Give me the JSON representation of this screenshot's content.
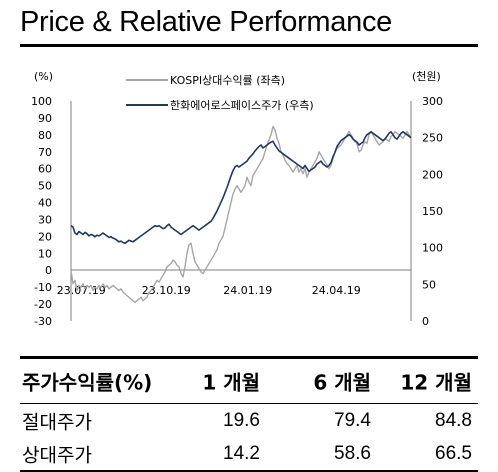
{
  "title": "Price & Relative Performance",
  "chart_data": {
    "type": "line",
    "left_unit": "(%)",
    "right_unit": "(천원)",
    "left_ticks": [
      100,
      90,
      80,
      70,
      60,
      50,
      40,
      30,
      20,
      10,
      0,
      -10,
      -20,
      -30
    ],
    "right_ticks": [
      300,
      250,
      200,
      150,
      100,
      50,
      0
    ],
    "x_ticks": [
      "23.07.19",
      "23.10.19",
      "24.01.19",
      "24.04.19"
    ],
    "ylim_left": [
      -30,
      100
    ],
    "ylim_right": [
      0,
      300
    ],
    "series": [
      {
        "name": "KOSPI상대수익률 (좌측)",
        "axis": "left",
        "color": "#a6a6a6",
        "x": [
          0,
          2,
          4,
          6,
          8,
          10,
          12,
          14,
          16,
          18,
          20,
          22,
          24,
          26,
          28,
          30,
          32,
          34,
          36,
          38,
          40,
          42,
          44,
          46,
          48,
          50,
          52,
          54,
          56,
          58,
          60,
          62,
          64,
          66,
          68,
          70,
          72,
          74,
          76,
          78,
          80,
          82,
          84,
          86,
          88,
          90,
          92,
          94,
          96,
          98,
          100,
          102,
          104,
          106,
          108,
          110,
          112,
          114,
          116,
          118,
          120,
          122,
          124,
          126,
          128,
          130,
          132,
          134,
          136,
          138,
          140,
          142,
          144,
          146,
          148,
          150,
          152,
          154,
          156,
          158,
          160,
          162,
          164,
          166,
          168,
          170,
          172,
          174,
          176,
          178,
          180,
          182,
          184,
          186,
          188,
          190,
          192,
          194,
          196,
          198,
          200,
          202,
          204,
          206,
          208,
          210,
          212,
          214,
          216,
          218,
          220,
          222,
          224,
          226,
          228,
          230,
          232,
          234,
          236,
          238,
          240,
          242,
          244,
          246,
          248,
          250,
          252,
          254,
          256,
          258,
          260,
          262,
          264,
          266,
          268,
          270,
          272,
          274,
          276,
          278,
          280,
          282,
          284,
          286,
          288,
          290,
          292,
          294,
          296,
          298,
          300,
          302,
          304,
          306,
          308,
          310,
          312,
          314,
          316,
          318,
          320,
          322,
          324,
          326,
          328,
          330,
          332,
          334,
          336,
          338,
          340
        ],
        "values": [
          0,
          -8,
          -6,
          -12,
          -9,
          -10,
          -8,
          -11,
          -9,
          -10,
          -9,
          -12,
          -10,
          -11,
          -9,
          -10,
          -8,
          -10,
          -9,
          -11,
          -10,
          -9,
          -10,
          -11,
          -12,
          -11,
          -13,
          -14,
          -15,
          -16,
          -17,
          -18,
          -19,
          -18,
          -17,
          -16,
          -18,
          -17,
          -16,
          -13,
          -12,
          -10,
          -8,
          -6,
          -7,
          -5,
          -3,
          -1,
          2,
          3,
          4,
          6,
          5,
          3,
          2,
          -2,
          -4,
          2,
          10,
          15,
          16,
          10,
          5,
          3,
          1,
          -1,
          -2,
          0,
          2,
          4,
          6,
          8,
          10,
          12,
          16,
          18,
          20,
          25,
          30,
          35,
          40,
          45,
          48,
          50,
          48,
          46,
          48,
          50,
          55,
          52,
          50,
          56,
          58,
          60,
          62,
          64,
          66,
          70,
          74,
          77,
          80,
          85,
          83,
          78,
          75,
          70,
          68,
          65,
          63,
          62,
          60,
          58,
          60,
          62,
          58,
          60,
          57,
          60,
          55,
          58,
          60,
          62,
          64,
          66,
          70,
          68,
          66,
          64,
          62,
          60,
          62,
          66,
          70,
          72,
          73,
          74,
          76,
          78,
          80,
          82,
          80,
          78,
          76,
          75,
          70,
          71,
          74,
          76,
          75,
          80,
          82,
          80,
          78,
          76,
          74,
          75,
          76,
          78,
          77,
          76,
          79,
          80,
          82,
          81,
          80,
          79,
          78,
          80,
          82,
          80,
          79
        ]
      },
      {
        "name": "한화에어로스페이스주가 (우측)",
        "axis": "right",
        "color": "#1f3864",
        "x": [
          0,
          2,
          4,
          6,
          8,
          10,
          12,
          14,
          16,
          18,
          20,
          22,
          24,
          26,
          28,
          30,
          32,
          34,
          36,
          38,
          40,
          42,
          44,
          46,
          48,
          50,
          52,
          54,
          56,
          58,
          60,
          62,
          64,
          66,
          68,
          70,
          72,
          74,
          76,
          78,
          80,
          82,
          84,
          86,
          88,
          90,
          92,
          94,
          96,
          98,
          100,
          102,
          104,
          106,
          108,
          110,
          112,
          114,
          116,
          118,
          120,
          122,
          124,
          126,
          128,
          130,
          132,
          134,
          136,
          138,
          140,
          142,
          144,
          146,
          148,
          150,
          152,
          154,
          156,
          158,
          160,
          162,
          164,
          166,
          168,
          170,
          172,
          174,
          176,
          178,
          180,
          182,
          184,
          186,
          188,
          190,
          192,
          194,
          196,
          198,
          200,
          202,
          204,
          206,
          208,
          210,
          212,
          214,
          216,
          218,
          220,
          222,
          224,
          226,
          228,
          230,
          232,
          234,
          236,
          238,
          240,
          242,
          244,
          246,
          248,
          250,
          252,
          254,
          256,
          258,
          260,
          262,
          264,
          266,
          268,
          270,
          272,
          274,
          276,
          278,
          280,
          282,
          284,
          286,
          288,
          290,
          292,
          294,
          296,
          298,
          300,
          302,
          304,
          306,
          308,
          310,
          312,
          314,
          316,
          318,
          320,
          322,
          324,
          326,
          328,
          330,
          332,
          334,
          336,
          338,
          340
        ],
        "values": [
          130,
          128,
          120,
          118,
          122,
          120,
          118,
          121,
          119,
          116,
          118,
          117,
          115,
          117,
          116,
          118,
          120,
          118,
          116,
          114,
          115,
          113,
          112,
          110,
          108,
          109,
          107,
          106,
          108,
          110,
          109,
          108,
          110,
          112,
          114,
          116,
          118,
          120,
          122,
          124,
          126,
          128,
          130,
          129,
          130,
          128,
          126,
          127,
          130,
          132,
          128,
          126,
          124,
          122,
          120,
          118,
          120,
          122,
          124,
          126,
          128,
          130,
          128,
          126,
          124,
          126,
          128,
          130,
          132,
          134,
          136,
          140,
          145,
          150,
          156,
          162,
          168,
          175,
          182,
          190,
          198,
          205,
          210,
          212,
          210,
          212,
          214,
          216,
          218,
          222,
          225,
          228,
          232,
          235,
          238,
          240,
          236,
          238,
          240,
          242,
          244,
          245,
          240,
          236,
          232,
          230,
          228,
          226,
          224,
          222,
          220,
          218,
          216,
          214,
          212,
          210,
          208,
          212,
          208,
          204,
          206,
          208,
          210,
          214,
          216,
          218,
          214,
          212,
          210,
          212,
          216,
          224,
          230,
          238,
          242,
          246,
          248,
          250,
          252,
          254,
          252,
          248,
          246,
          244,
          240,
          242,
          244,
          250,
          254,
          256,
          258,
          256,
          254,
          252,
          250,
          248,
          246,
          248,
          252,
          256,
          258,
          254,
          250,
          248,
          252,
          256,
          258,
          256,
          254,
          252,
          250
        ]
      }
    ]
  },
  "table": {
    "header": [
      "주가수익률(%)",
      "1 개월",
      "6 개월",
      "12 개월"
    ],
    "rows": [
      [
        "절대주가",
        "19.6",
        "79.4",
        "84.8"
      ],
      [
        "상대주가",
        "14.2",
        "58.6",
        "66.5"
      ]
    ]
  }
}
